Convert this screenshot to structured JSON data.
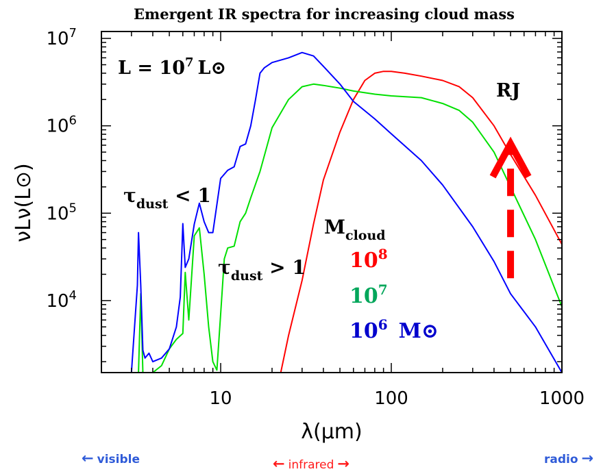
{
  "chart_data": {
    "type": "line",
    "title": "Emergent IR spectra  for  increasing cloud mass",
    "xlabel": "λ(μm)",
    "ylabel": "νLν(L⊙)",
    "xscale": "log",
    "yscale": "log",
    "xlim": [
      2,
      1000
    ],
    "ylim": [
      1500,
      12000000
    ],
    "xticks": [
      {
        "value": 10,
        "label": "10"
      },
      {
        "value": 100,
        "label": "100"
      },
      {
        "value": 1000,
        "label": "1000"
      }
    ],
    "yticks": [
      {
        "value": 10000,
        "base": "10",
        "exp": "4"
      },
      {
        "value": 100000,
        "base": "10",
        "exp": "5"
      },
      {
        "value": 1000000,
        "base": "10",
        "exp": "6"
      },
      {
        "value": 10000000,
        "base": "10",
        "exp": "7"
      }
    ],
    "series": [
      {
        "name": "10⁸",
        "color": "#ff0000",
        "x": [
          22.5,
          25,
          30,
          35,
          40,
          50,
          60,
          70,
          80,
          90,
          100,
          120,
          150,
          200,
          250,
          300,
          400,
          500,
          700,
          1000
        ],
        "y": [
          1500,
          4000,
          17000,
          75000,
          240000,
          850000,
          2000000,
          3300000,
          4000000,
          4200000,
          4200000,
          4000000,
          3700000,
          3300000,
          2800000,
          2100000,
          1000000,
          470000,
          160000,
          44000
        ]
      },
      {
        "name": "10⁷",
        "color": "#00e000",
        "x": [
          3.0,
          3.3,
          3.4,
          3.5,
          3.6,
          4.0,
          4.5,
          5.0,
          5.5,
          6.0,
          6.2,
          6.5,
          7.0,
          7.5,
          8.0,
          8.5,
          9.0,
          9.5,
          10,
          10.5,
          11,
          12,
          13,
          14,
          15,
          17,
          20,
          25,
          30,
          35,
          40,
          50,
          60,
          80,
          100,
          150,
          200,
          250,
          300,
          400,
          500,
          700,
          1000
        ],
        "y": [
          1500,
          1500,
          12000,
          1500,
          1500,
          1500,
          1800,
          2800,
          3600,
          4200,
          21000,
          6000,
          55000,
          68000,
          20000,
          5000,
          2000,
          1600,
          7000,
          30000,
          40000,
          42000,
          80000,
          100000,
          150000,
          300000,
          950000,
          2000000,
          2800000,
          3000000,
          2900000,
          2700000,
          2500000,
          2300000,
          2200000,
          2100000,
          1800000,
          1500000,
          1100000,
          500000,
          200000,
          50000,
          8500
        ]
      },
      {
        "name": "10⁶",
        "color": "#0000ff",
        "x": [
          3.0,
          3.25,
          3.3,
          3.4,
          3.5,
          3.6,
          3.8,
          4.0,
          4.5,
          5.0,
          5.5,
          5.8,
          6.0,
          6.2,
          6.5,
          7.0,
          7.5,
          8.0,
          8.5,
          9.0,
          10,
          11,
          12,
          13,
          14,
          15,
          16,
          17,
          18,
          20,
          25,
          30,
          35,
          40,
          50,
          60,
          80,
          100,
          150,
          200,
          300,
          400,
          500,
          700,
          1000
        ],
        "y": [
          1500,
          15000,
          60000,
          15000,
          2700,
          2200,
          2500,
          2000,
          2200,
          2800,
          5000,
          11000,
          76000,
          24000,
          30000,
          75000,
          130000,
          80000,
          60000,
          60000,
          250000,
          310000,
          340000,
          580000,
          620000,
          1000000,
          2000000,
          4000000,
          4600000,
          5300000,
          6000000,
          6900000,
          6300000,
          4800000,
          3000000,
          1900000,
          1200000,
          810000,
          400000,
          210000,
          70000,
          28000,
          12000,
          5000,
          1500
        ]
      }
    ],
    "annotations": {
      "luminosity": {
        "label": "L = 10",
        "exp": "7",
        "unit": "L⊙"
      },
      "rj": "RJ",
      "tau_thin": {
        "symbol": "τ",
        "sub": "dust",
        "rel": " < 1"
      },
      "tau_thick": {
        "symbol": "τ",
        "sub": "dust",
        "rel": " > 1"
      },
      "mcloud": {
        "symbol": "M",
        "sub": "cloud"
      },
      "mass_entries": [
        {
          "base": "10",
          "exp": "8",
          "color": "#ff0000"
        },
        {
          "base": "10",
          "exp": "7",
          "color": "#00a65a"
        },
        {
          "base": "10",
          "exp": "6",
          "color": "#0000cd"
        }
      ],
      "mass_unit": "M⊙"
    },
    "rj_arrow": {
      "color": "#ff0000",
      "x": 500,
      "y_from": 18000,
      "y_to": 600000
    }
  },
  "nav": {
    "visible": {
      "arrow": "←",
      "label": "visible",
      "color": "#2f5bd8"
    },
    "infrared": {
      "arrow_left": "←",
      "label": "infrared",
      "arrow_right": "→",
      "color": "#ff1a1a"
    },
    "radio": {
      "label": "radio",
      "arrow": "→",
      "color": "#2f5bd8"
    }
  }
}
